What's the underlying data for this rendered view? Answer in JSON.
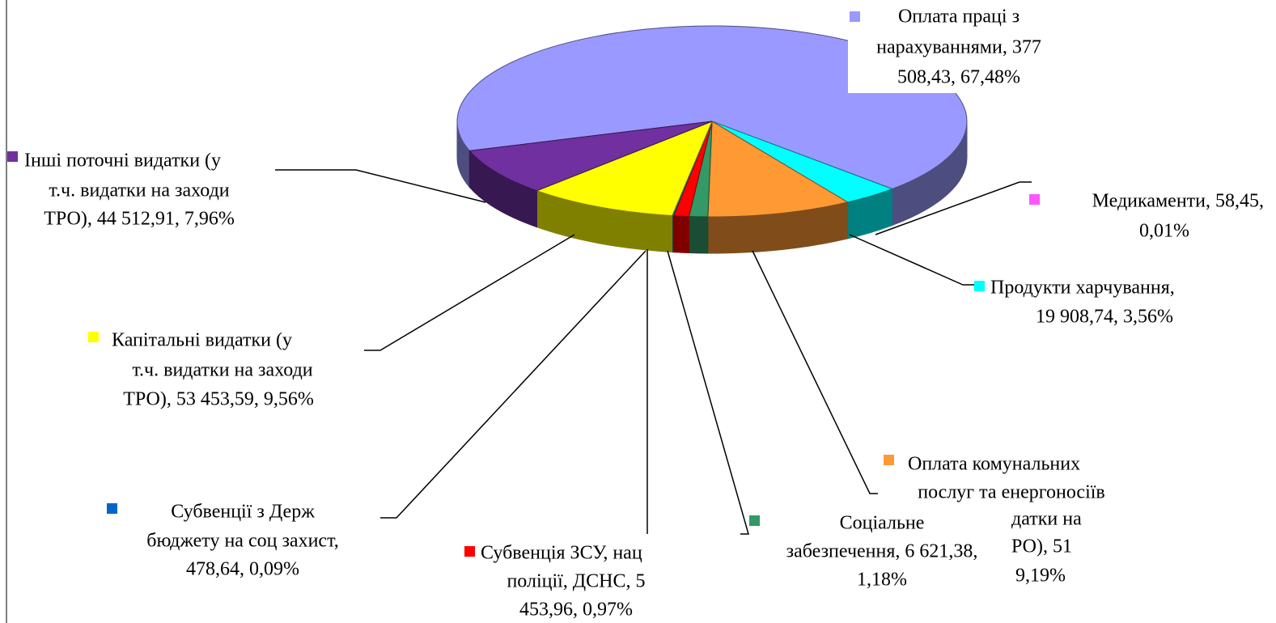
{
  "chart_data": {
    "type": "pie",
    "categories": [
      "Оплата праці з нарахуваннями",
      "Медикаменти",
      "Продукти харчування",
      "Оплата комунальних послуг та енергоносіїв",
      "Соціальне забезпечення",
      "Субвенція ЗСУ, нац поліції, ДСНС",
      "Субвенції з Держ бюджету на соц захист",
      "Капітальні видатки (у т.ч. видатки на заходи ТРО)",
      "Інші поточні видатки (у т.ч. видатки на заходи ТРО)"
    ],
    "values": [
      67.48,
      0.01,
      3.56,
      9.19,
      1.18,
      0.97,
      0.09,
      9.56,
      7.96
    ],
    "value_labels": [
      "67,48%",
      "0,01%",
      "3,56%",
      "9,19%",
      "1,18%",
      "0,97%",
      "0,09%",
      "9,56%",
      "7,96%"
    ],
    "labels": [
      [
        "Оплата праці з",
        "нарахуваннями,  377",
        "508,43, 67,48%"
      ],
      [
        "Медикаменти,   58,45,",
        "0,01%"
      ],
      [
        "Продукти харчування,",
        "19 908,74, 3,56%"
      ],
      [
        "Оплата комунальних",
        "послуг та енергоносіїв",
        "датки на",
        "РО),  51",
        "9,19%"
      ],
      [
        "Соціальне",
        "забезпечення,  6 621,38,",
        "1,18%"
      ],
      [
        "Субвенція ЗСУ, нац",
        "поліції, ДСНС,  5",
        "453,96, 0,97%"
      ],
      [
        "Субвенції з Держ",
        "бюджету на соц захист,",
        "478,64, 0,09%"
      ],
      [
        "Капітальні видатки (у",
        "т.ч. видатки на заходи",
        "ТРО),  53 453,59, 9,56%"
      ],
      [
        "Інші поточні видатки (у",
        "т.ч. видатки на заходи",
        "ТРО),  44 512,91, 7,96%"
      ]
    ],
    "colors": [
      "#9999ff",
      "#ff55ff",
      "#00ffff",
      "#ff9933",
      "#339966",
      "#ff0000",
      "#0066cc",
      "#ffff00",
      "#7030a0"
    ]
  }
}
